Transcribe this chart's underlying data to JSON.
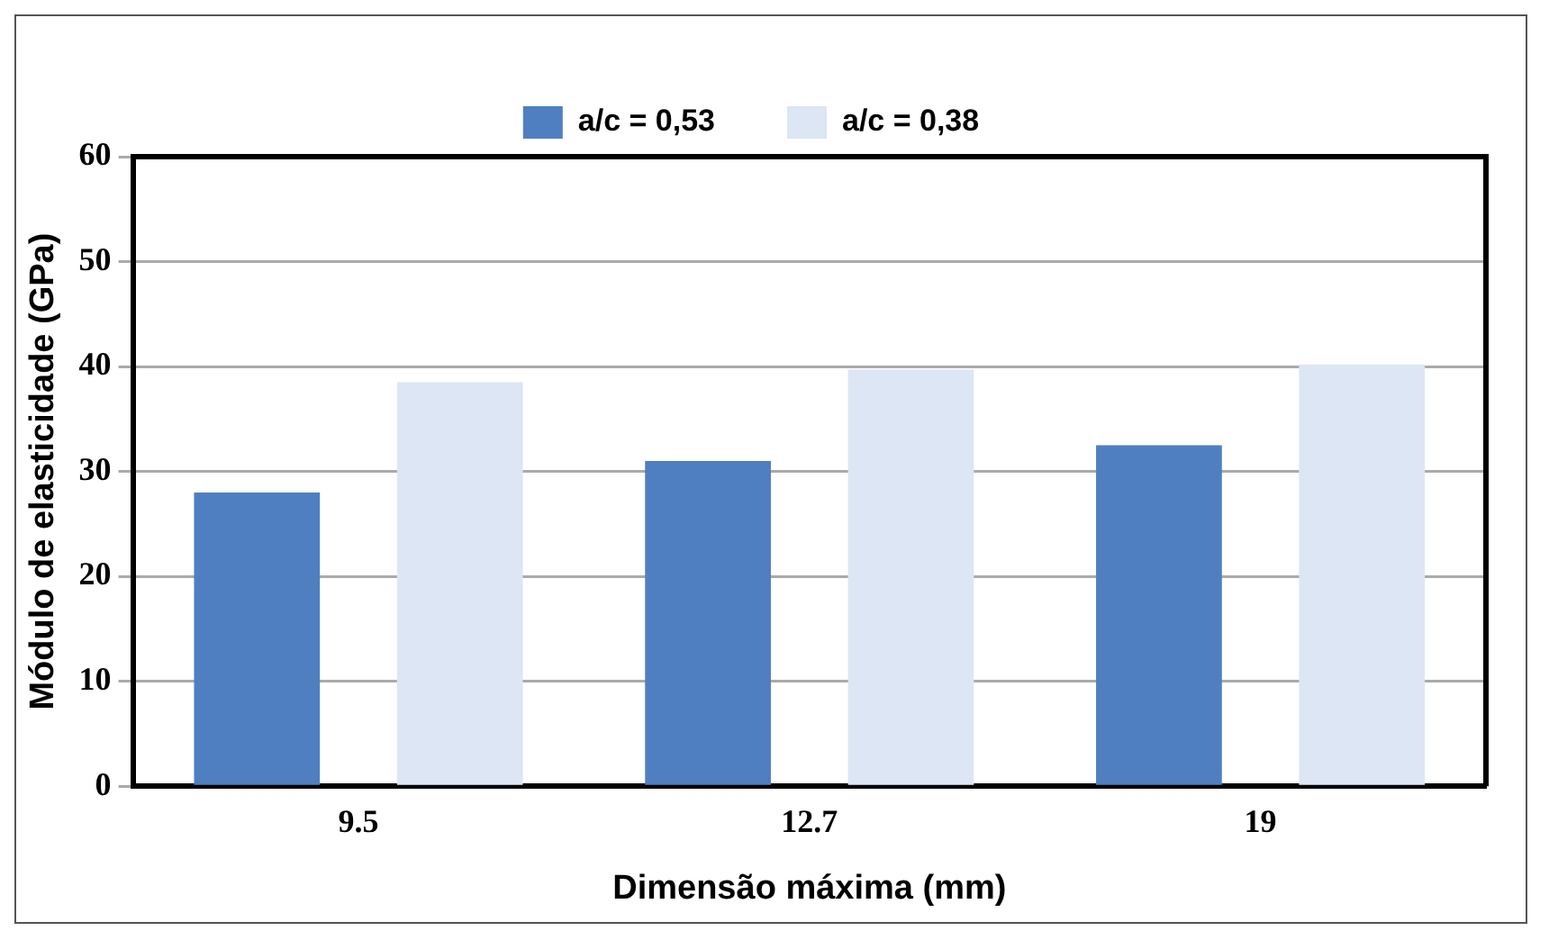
{
  "chart_data": {
    "type": "bar",
    "xlabel": "Dimensão máxima (mm)",
    "ylabel": "Módulo de elasticidade (GPa)",
    "categories": [
      "9.5",
      "12.7",
      "19"
    ],
    "series": [
      {
        "name": "a/c = 0,53",
        "color": "#4f7fc0",
        "values": [
          28.0,
          31.0,
          32.5
        ]
      },
      {
        "name": "a/c = 0,38",
        "color": "#dce6f4",
        "values": [
          38.5,
          39.7,
          40.2
        ]
      }
    ],
    "ylim": [
      0,
      60
    ],
    "yticks": [
      0,
      10,
      20,
      30,
      40,
      50,
      60
    ],
    "grid": "y",
    "legend": "top"
  }
}
